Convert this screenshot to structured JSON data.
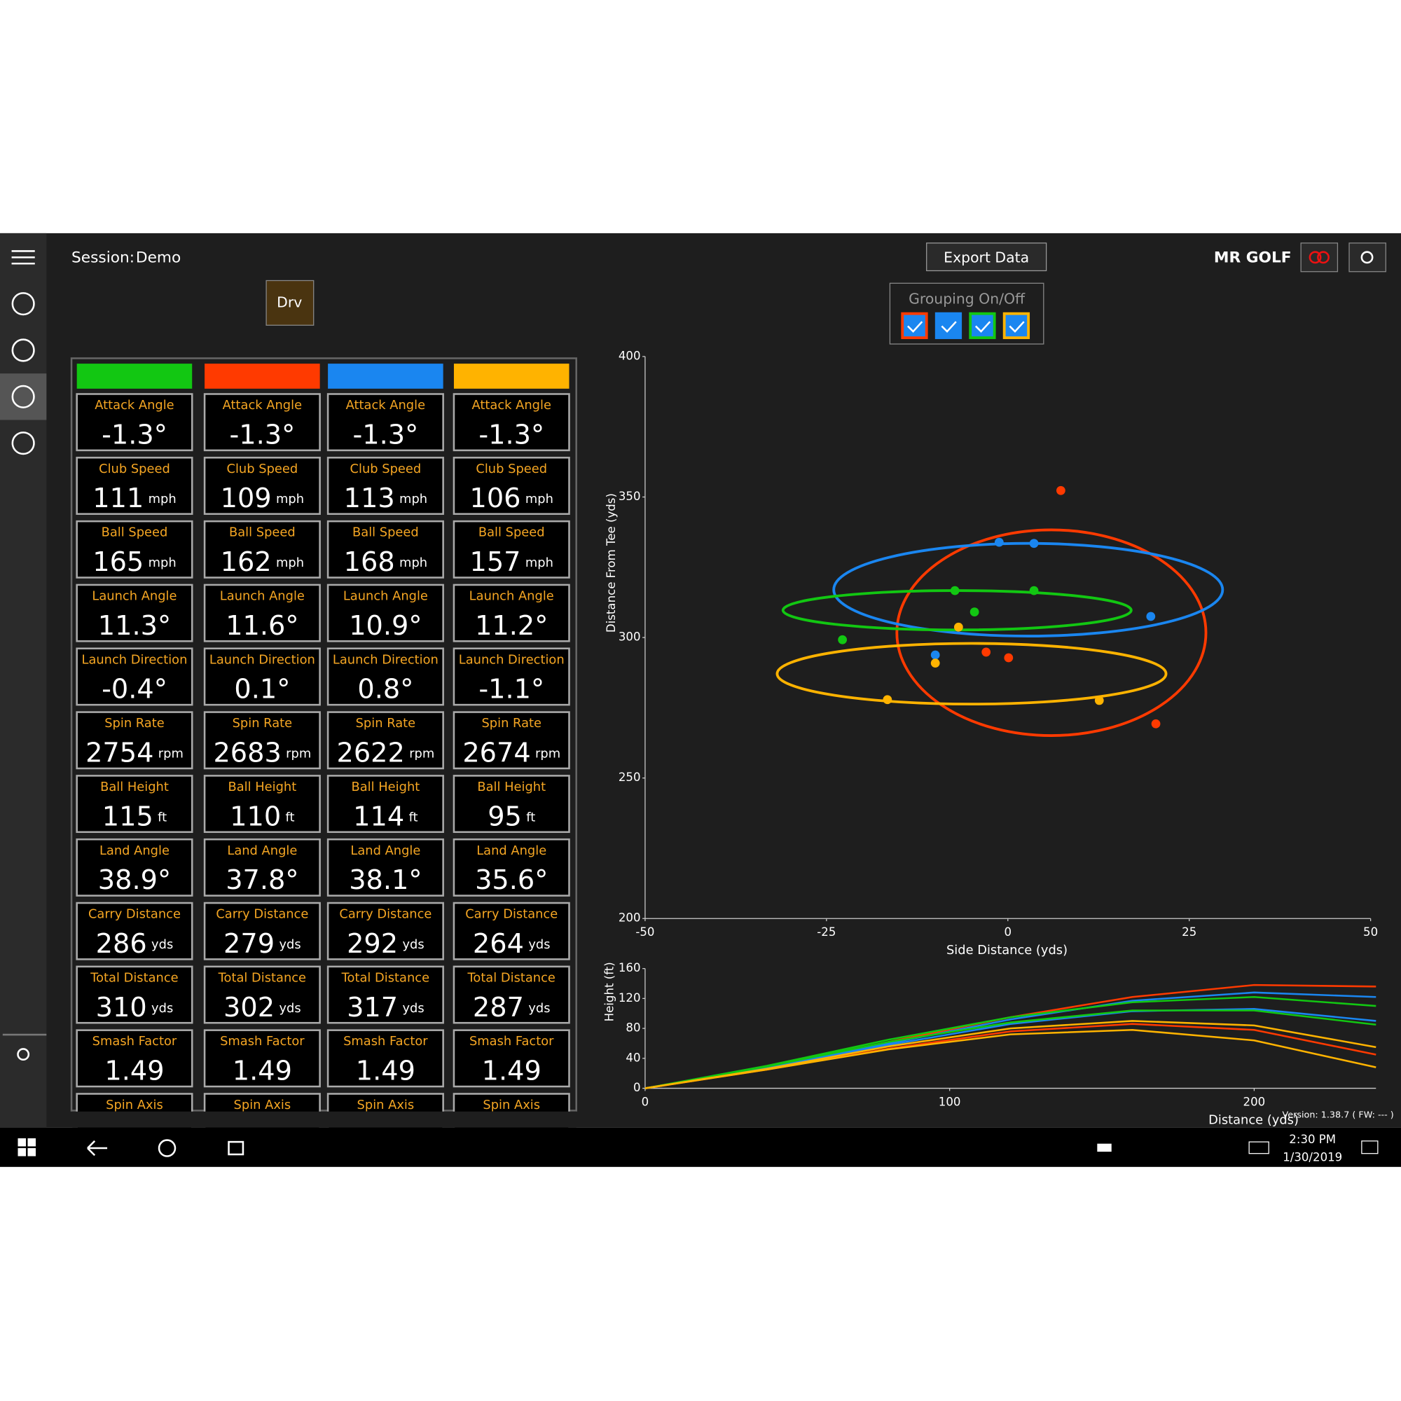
{
  "header": {
    "session_label": "Session:",
    "session_name": "Demo",
    "export": "Export Data",
    "brand": "MR GOLF",
    "club": "Drv",
    "grouping": "Grouping On/Off"
  },
  "table": {
    "colors": [
      "#12c712",
      "#ff3a00",
      "#1a86f0",
      "#ffb300"
    ],
    "rows": [
      {
        "label": "Attack Angle",
        "cells": [
          {
            "value": "-1.3°"
          },
          {
            "value": "-1.3°"
          },
          {
            "value": "-1.3°"
          },
          {
            "value": "-1.3°"
          }
        ]
      },
      {
        "label": "Club Speed",
        "cells": [
          {
            "value": "111",
            "unit": "mph"
          },
          {
            "value": "109",
            "unit": "mph"
          },
          {
            "value": "113",
            "unit": "mph"
          },
          {
            "value": "106",
            "unit": "mph"
          }
        ]
      },
      {
        "label": "Ball Speed",
        "cells": [
          {
            "value": "165",
            "unit": "mph"
          },
          {
            "value": "162",
            "unit": "mph"
          },
          {
            "value": "168",
            "unit": "mph"
          },
          {
            "value": "157",
            "unit": "mph"
          }
        ]
      },
      {
        "label": "Launch Angle",
        "cells": [
          {
            "value": "11.3°"
          },
          {
            "value": "11.6°"
          },
          {
            "value": "10.9°"
          },
          {
            "value": "11.2°"
          }
        ]
      },
      {
        "label": "Launch Direction",
        "cells": [
          {
            "value": "-0.4°"
          },
          {
            "value": "0.1°"
          },
          {
            "value": "0.8°"
          },
          {
            "value": "-1.1°"
          }
        ]
      },
      {
        "label": "Spin Rate",
        "cells": [
          {
            "value": "2754",
            "unit": "rpm"
          },
          {
            "value": "2683",
            "unit": "rpm"
          },
          {
            "value": "2622",
            "unit": "rpm"
          },
          {
            "value": "2674",
            "unit": "rpm"
          }
        ]
      },
      {
        "label": "Ball Height",
        "cells": [
          {
            "value": "115",
            "unit": "ft"
          },
          {
            "value": "110",
            "unit": "ft"
          },
          {
            "value": "114",
            "unit": "ft"
          },
          {
            "value": "95",
            "unit": "ft"
          }
        ]
      },
      {
        "label": "Land Angle",
        "cells": [
          {
            "value": "38.9°"
          },
          {
            "value": "37.8°"
          },
          {
            "value": "38.1°"
          },
          {
            "value": "35.6°"
          }
        ]
      },
      {
        "label": "Carry Distance",
        "cells": [
          {
            "value": "286",
            "unit": "yds"
          },
          {
            "value": "279",
            "unit": "yds"
          },
          {
            "value": "292",
            "unit": "yds"
          },
          {
            "value": "264",
            "unit": "yds"
          }
        ]
      },
      {
        "label": "Total Distance",
        "cells": [
          {
            "value": "310",
            "unit": "yds"
          },
          {
            "value": "302",
            "unit": "yds"
          },
          {
            "value": "317",
            "unit": "yds"
          },
          {
            "value": "287",
            "unit": "yds"
          }
        ]
      },
      {
        "label": "Smash Factor",
        "cells": [
          {
            "value": "1.49"
          },
          {
            "value": "1.49"
          },
          {
            "value": "1.49"
          },
          {
            "value": "1.49"
          }
        ]
      },
      {
        "label": "Spin Axis",
        "cells": [
          {},
          {},
          {},
          {}
        ]
      }
    ]
  },
  "chart_data": [
    {
      "type": "scatter",
      "xlabel": "Side Distance (yds)",
      "ylabel": "Distance From Tee (yds)",
      "xlim": [
        -50,
        50
      ],
      "ylim": [
        200,
        400
      ],
      "xticks": [
        -50,
        -25,
        0,
        25,
        50
      ],
      "yticks": [
        200,
        250,
        300,
        350,
        400
      ],
      "series": [
        {
          "color": "#ff3a00",
          "x": [
            7.3,
            -3.0,
            0.1,
            20.4
          ],
          "values": [
            352.3,
            294.8,
            292.8,
            269.3
          ],
          "ellipse": {
            "cx": 6.0,
            "cy": 301.7,
            "rx": 21.3,
            "ry": 36.6
          }
        },
        {
          "color": "#1a86f0",
          "x": [
            -1.2,
            3.6,
            19.7,
            -10.0
          ],
          "values": [
            333.9,
            333.5,
            307.5,
            293.8
          ],
          "ellipse": {
            "cx": 2.8,
            "cy": 317.0,
            "rx": 26.8,
            "ry": 16.5
          }
        },
        {
          "color": "#12c712",
          "x": [
            -7.3,
            3.6,
            -4.6,
            -22.8
          ],
          "values": [
            316.7,
            316.7,
            309.1,
            299.2
          ],
          "ellipse": {
            "cx": -7.0,
            "cy": 309.7,
            "rx": 24.0,
            "ry": 7.0
          }
        },
        {
          "color": "#ffb300",
          "x": [
            -6.8,
            -10.0,
            -16.6,
            12.6
          ],
          "values": [
            303.7,
            290.9,
            277.9,
            277.6
          ],
          "ellipse": {
            "cx": -5.0,
            "cy": 287.1,
            "rx": 26.8,
            "ry": 10.8
          }
        }
      ]
    },
    {
      "type": "line",
      "xlabel": "Distance (yds)",
      "ylabel": "Height (ft)",
      "xlim": [
        0,
        240
      ],
      "ylim": [
        0,
        160
      ],
      "xticks": [
        0,
        100,
        200
      ],
      "yticks": [
        0,
        40,
        80,
        120,
        160
      ],
      "x": [
        0,
        40,
        80,
        120,
        160,
        200,
        240
      ],
      "series": [
        {
          "color": "#ff3a00",
          "curves": [
            [
              0,
              28,
              62,
              95,
              122,
              138,
              136
            ],
            [
              0,
              25,
              53,
              76,
              86,
              78,
              45
            ]
          ]
        },
        {
          "color": "#1a86f0",
          "curves": [
            [
              0,
              27,
              60,
              92,
              117,
              128,
              122
            ],
            [
              0,
              27,
              58,
              86,
              103,
              106,
              90
            ]
          ]
        },
        {
          "color": "#12c712",
          "curves": [
            [
              0,
              30,
              65,
              95,
              115,
              122,
              110
            ],
            [
              0,
              29,
              62,
              88,
              104,
              104,
              85
            ]
          ]
        },
        {
          "color": "#ffb300",
          "curves": [
            [
              0,
              26,
              56,
              80,
              90,
              84,
              55
            ],
            [
              0,
              25,
              52,
              72,
              78,
              64,
              28
            ]
          ]
        }
      ]
    }
  ],
  "footer": {
    "version": "Version: 1.38.7 ( FW: --- )",
    "time": "2:30 PM",
    "date": "1/30/2019"
  }
}
